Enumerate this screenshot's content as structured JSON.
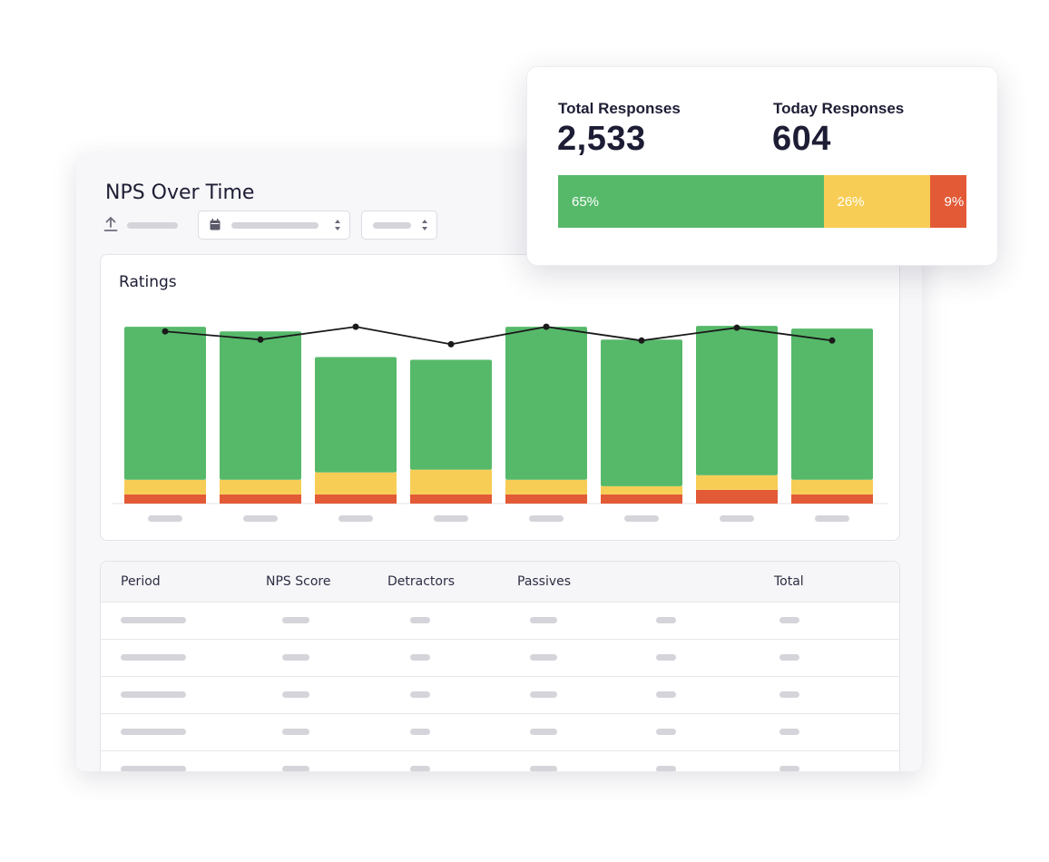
{
  "report": {
    "title": "NPS Over Time",
    "chart_title": "Ratings",
    "export_icon": "upload-icon",
    "date_icon": "calendar-icon"
  },
  "colors": {
    "promoters": "#56b96a",
    "passives": "#f8cd55",
    "detractors": "#e25a36",
    "line": "#1a1a1a"
  },
  "chart_data": {
    "type": "bar",
    "stacked": true,
    "categories": [
      "",
      "",
      "",
      "",
      "",
      "",
      "",
      ""
    ],
    "series": [
      {
        "values": [
          10,
          10,
          10,
          10,
          10,
          10,
          15,
          10
        ]
      },
      {
        "values": [
          16,
          16,
          24,
          27,
          16,
          9,
          16,
          16
        ]
      },
      {
        "values": [
          167,
          162,
          126,
          120,
          167,
          160,
          163,
          165
        ]
      }
    ],
    "line": {
      "values": [
        188,
        179,
        193,
        174,
        193,
        178,
        192,
        178
      ]
    },
    "ylim": [
      0,
      210
    ],
    "grid": false
  },
  "table": {
    "headers": [
      "Period",
      "NPS Score",
      "Detractors",
      "Passives",
      "",
      "Total"
    ],
    "rows": 5
  },
  "stats": {
    "total_label": "Total Responses",
    "total_value": "2,533",
    "today_label": "Today Responses",
    "today_value": "604",
    "share": [
      {
        "label": "65%",
        "value": 65
      },
      {
        "label": "26%",
        "value": 26
      },
      {
        "label": "9%",
        "value": 9
      }
    ]
  }
}
